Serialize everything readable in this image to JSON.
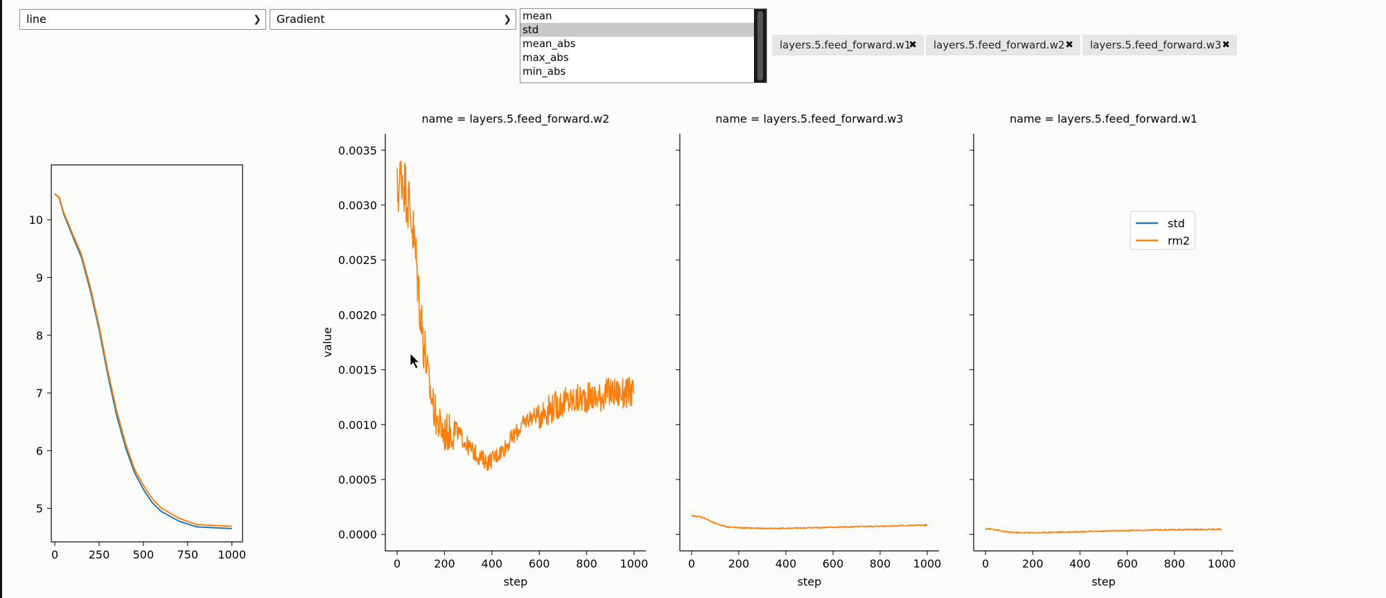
{
  "controls": {
    "chart_type": "line",
    "metric": "Gradient",
    "stat_options": [
      "mean",
      "std",
      "mean_abs",
      "max_abs",
      "min_abs"
    ],
    "stat_selected": "std",
    "tags": [
      "layers.5.feed_forward.w1",
      "layers.5.feed_forward.w2",
      "layers.5.feed_forward.w3"
    ]
  },
  "colors": {
    "std": "#1f77b4",
    "rm2": "#ff7f0e"
  },
  "chart_data": [
    {
      "type": "line",
      "title": "",
      "xlim": [
        -20,
        1060
      ],
      "ylim": [
        4.42,
        10.95
      ],
      "xticks": [
        0,
        250,
        500,
        750,
        1000
      ],
      "yticks": [
        5,
        6,
        7,
        8,
        9,
        10
      ],
      "series": [
        {
          "name": "std",
          "x": [
            0,
            25,
            50,
            100,
            150,
            200,
            250,
            300,
            350,
            400,
            450,
            500,
            550,
            600,
            700,
            800,
            1000
          ],
          "y": [
            10.45,
            10.38,
            10.1,
            9.72,
            9.35,
            8.78,
            8.1,
            7.3,
            6.6,
            6.05,
            5.62,
            5.33,
            5.1,
            4.95,
            4.78,
            4.68,
            4.65
          ]
        },
        {
          "name": "rm2",
          "x": [
            0,
            25,
            50,
            100,
            150,
            200,
            250,
            300,
            350,
            400,
            450,
            500,
            550,
            600,
            700,
            800,
            1000
          ],
          "y": [
            10.44,
            10.39,
            10.13,
            9.76,
            9.4,
            8.84,
            8.16,
            7.37,
            6.68,
            6.12,
            5.68,
            5.4,
            5.17,
            5.01,
            4.83,
            4.72,
            4.69
          ]
        }
      ]
    },
    {
      "type": "line",
      "title": "name = layers.5.feed_forward.w2",
      "xlabel": "step",
      "ylabel": "value",
      "xlim": [
        -50,
        1050
      ],
      "ylim": [
        -0.00015,
        0.00365
      ],
      "xticks": [
        0,
        200,
        400,
        600,
        800,
        1000
      ],
      "yticks": [
        0.0,
        0.0005,
        0.001,
        0.0015,
        0.002,
        0.0025,
        0.003,
        0.0035
      ],
      "ytick_labels": [
        "0.0000",
        "0.0005",
        "0.0010",
        "0.0015",
        "0.0020",
        "0.0025",
        "0.0030",
        "0.0035"
      ],
      "series": [
        {
          "name": "rm2",
          "x": [
            0,
            20,
            40,
            60,
            80,
            100,
            120,
            140,
            160,
            180,
            200,
            250,
            300,
            350,
            380,
            400,
            450,
            500,
            550,
            600,
            650,
            700,
            750,
            800,
            850,
            900,
            950,
            1000
          ],
          "y": [
            0.0031,
            0.0033,
            0.0031,
            0.0029,
            0.0025,
            0.002,
            0.0016,
            0.0013,
            0.0011,
            0.00098,
            0.00092,
            0.00095,
            0.0008,
            0.0007,
            0.00066,
            0.00068,
            0.00078,
            0.00092,
            0.00105,
            0.0011,
            0.00115,
            0.0012,
            0.00122,
            0.00125,
            0.00125,
            0.0013,
            0.00128,
            0.0013
          ]
        }
      ]
    },
    {
      "type": "line",
      "title": "name = layers.5.feed_forward.w3",
      "xlabel": "step",
      "xlim": [
        -50,
        1050
      ],
      "ylim": [
        -0.00015,
        0.00365
      ],
      "xticks": [
        0,
        200,
        400,
        600,
        800,
        1000
      ],
      "series": [
        {
          "name": "rm2",
          "x": [
            0,
            20,
            40,
            60,
            80,
            100,
            150,
            200,
            300,
            400,
            500,
            600,
            700,
            800,
            900,
            1000
          ],
          "y": [
            0.00017,
            0.000165,
            0.00016,
            0.000145,
            0.00012,
            0.0001,
            7e-05,
            6e-05,
            5.5e-05,
            5.5e-05,
            6e-05,
            6.5e-05,
            7e-05,
            7.5e-05,
            8e-05,
            8.5e-05
          ]
        }
      ]
    },
    {
      "type": "line",
      "title": "name = layers.5.feed_forward.w1",
      "xlabel": "step",
      "xlim": [
        -50,
        1050
      ],
      "ylim": [
        -0.00015,
        0.00365
      ],
      "xticks": [
        0,
        200,
        400,
        600,
        800,
        1000
      ],
      "legend": {
        "entries": [
          "std",
          "rm2"
        ],
        "position": "upper-right"
      },
      "series": [
        {
          "name": "rm2",
          "x": [
            0,
            20,
            40,
            60,
            80,
            100,
            150,
            200,
            300,
            400,
            500,
            600,
            700,
            800,
            900,
            1000
          ],
          "y": [
            5e-05,
            5e-05,
            4.5e-05,
            3.5e-05,
            2.5e-05,
            2e-05,
            1.5e-05,
            1.5e-05,
            2e-05,
            2.5e-05,
            3e-05,
            3.5e-05,
            4e-05,
            4.2e-05,
            4.5e-05,
            4.8e-05
          ]
        }
      ]
    }
  ]
}
